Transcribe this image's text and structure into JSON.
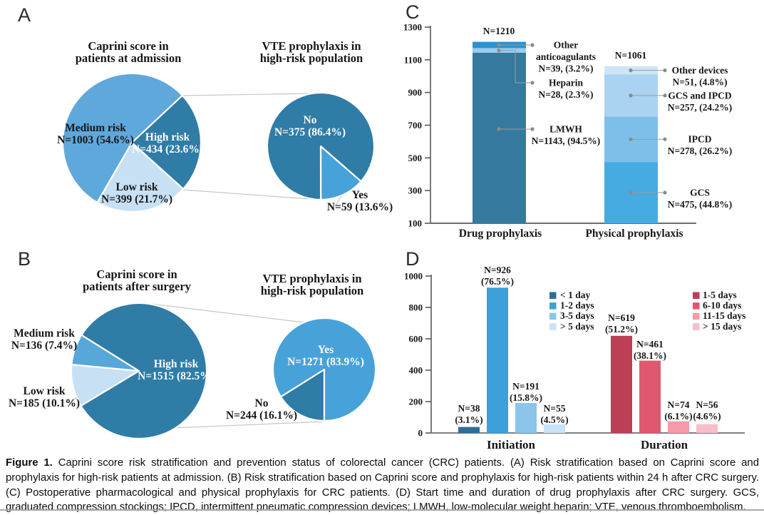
{
  "panels": {
    "a": "A",
    "b": "B",
    "c": "C",
    "d": "D"
  },
  "figure": {
    "caption_bold": "Figure 1.",
    "caption_rest": " Caprini score risk stratification and prevention status of colorectal cancer (CRC) patients. (A) Risk stratification based on Caprini score and prophylaxis for high-risk patients at admission. (B) Risk stratification based on Caprini score and prophylaxis for high-risk patients within 24 h after CRC surgery. (C) Postoperative pharmacological and physical prophylaxis for CRC patients. (D) Start time and duration of drug prophylaxis after CRC surgery. GCS, graduated compression stockings; IPCD, intermittent pneumatic compression devices; LMWH, low-molecular weight heparin; VTE, venous thromboembolism."
  },
  "colors": {
    "dark_blue": "#2F7CA7",
    "medium_blue": "#5FA8DC",
    "yes_blue": "#47A2D9",
    "pale_blue": "#C7E0F4",
    "axis_gray": "#595959",
    "marker_gray": "#8B8B85",
    "connector_gray": "#C6C6C2"
  },
  "chart_data": [
    {
      "id": "pie-admission",
      "type": "pie",
      "panel": "A",
      "title": "Caprini score in\npatients at admission",
      "slices": [
        {
          "label": "Medium risk",
          "n": 1003,
          "pct": 54.6,
          "color": "#5FA8DC"
        },
        {
          "label": "High risk",
          "n": 434,
          "pct": 23.6,
          "color": "#2F7CA7"
        },
        {
          "label": "Low risk",
          "n": 399,
          "pct": 21.7,
          "color": "#C7E0F4"
        }
      ]
    },
    {
      "id": "pie-admission-vte",
      "type": "pie",
      "panel": "A",
      "title": "VTE prophylaxis in\nhigh-risk population",
      "slices": [
        {
          "label": "No",
          "n": 375,
          "pct": 86.4,
          "color": "#2F7CA7"
        },
        {
          "label": "Yes",
          "n": 59,
          "pct": 13.6,
          "color": "#47A2D9"
        }
      ]
    },
    {
      "id": "pie-surgery",
      "type": "pie",
      "panel": "B",
      "title": "Caprini score in\npatients after surgery",
      "slices": [
        {
          "label": "High risk",
          "n": 1515,
          "pct": 82.5,
          "color": "#2F7CA7"
        },
        {
          "label": "Medium risk",
          "n": 136,
          "pct": 7.4,
          "color": "#58A7DA"
        },
        {
          "label": "Low risk",
          "n": 185,
          "pct": 10.1,
          "color": "#C7E0F4"
        }
      ]
    },
    {
      "id": "pie-surgery-vte",
      "type": "pie",
      "panel": "B",
      "title": "VTE prophylaxis in\nhigh-risk population",
      "slices": [
        {
          "label": "Yes",
          "n": 1271,
          "pct": 83.9,
          "color": "#47A2D9"
        },
        {
          "label": "No",
          "n": 244,
          "pct": 16.1,
          "color": "#2F7CA7"
        }
      ]
    },
    {
      "id": "prophylaxis-stacked",
      "type": "bar",
      "subtype": "stacked",
      "panel": "C",
      "ylim": [
        100,
        1300
      ],
      "yticks": [
        100,
        300,
        500,
        700,
        900,
        1100,
        1300
      ],
      "bars": [
        {
          "category": "Drug prophylaxis",
          "total": 1210,
          "segments": [
            {
              "label": "LMWH",
              "n": 1143,
              "pct": 94.5,
              "color": "#36799F"
            },
            {
              "label": "Heparin",
              "n": 28,
              "pct": 2.3,
              "color": "#9CCBEC"
            },
            {
              "label": "Other anticoagulants",
              "n": 39,
              "pct": 3.2,
              "color": "#2C92D0"
            }
          ]
        },
        {
          "category": "Physical prophylaxis",
          "total": 1061,
          "segments": [
            {
              "label": "GCS",
              "n": 475,
              "pct": 44.8,
              "color": "#45ABE1"
            },
            {
              "label": "IPCD",
              "n": 278,
              "pct": 26.2,
              "color": "#7EBFE9"
            },
            {
              "label": "GCS and IPCD",
              "n": 257,
              "pct": 24.2,
              "color": "#A9D3F0"
            },
            {
              "label": "Other devices",
              "n": 51,
              "pct": 4.8,
              "color": "#CEE5F7"
            }
          ]
        }
      ]
    },
    {
      "id": "timing",
      "type": "bar",
      "subtype": "grouped",
      "panel": "D",
      "ylim": [
        0,
        1000
      ],
      "yticks": [
        0,
        200,
        400,
        600,
        800,
        1000
      ],
      "groups": [
        {
          "label": "Initiation",
          "bars": [
            {
              "label": "< 1 day",
              "n": 38,
              "pct": 3.1,
              "color": "#2E6E99"
            },
            {
              "label": "1-2 days",
              "n": 926,
              "pct": 76.5,
              "color": "#3CA0DB"
            },
            {
              "label": "3-5 days",
              "n": 191,
              "pct": 15.8,
              "color": "#8BC5EC"
            },
            {
              "label": "> 5 days",
              "n": 55,
              "pct": 4.5,
              "color": "#C8E3F6"
            }
          ]
        },
        {
          "label": "Duration",
          "bars": [
            {
              "label": "1-5 days",
              "n": 619,
              "pct": 51.2,
              "color": "#BC3F56"
            },
            {
              "label": "6-10 days",
              "n": 461,
              "pct": 38.1,
              "color": "#E05870"
            },
            {
              "label": "11-15 days",
              "n": 74,
              "pct": 6.1,
              "color": "#F49BA9"
            },
            {
              "label": "> 15 days",
              "n": 56,
              "pct": 4.6,
              "color": "#F7BEC8"
            }
          ]
        }
      ],
      "legend_position": "upper-center / upper-right"
    }
  ]
}
